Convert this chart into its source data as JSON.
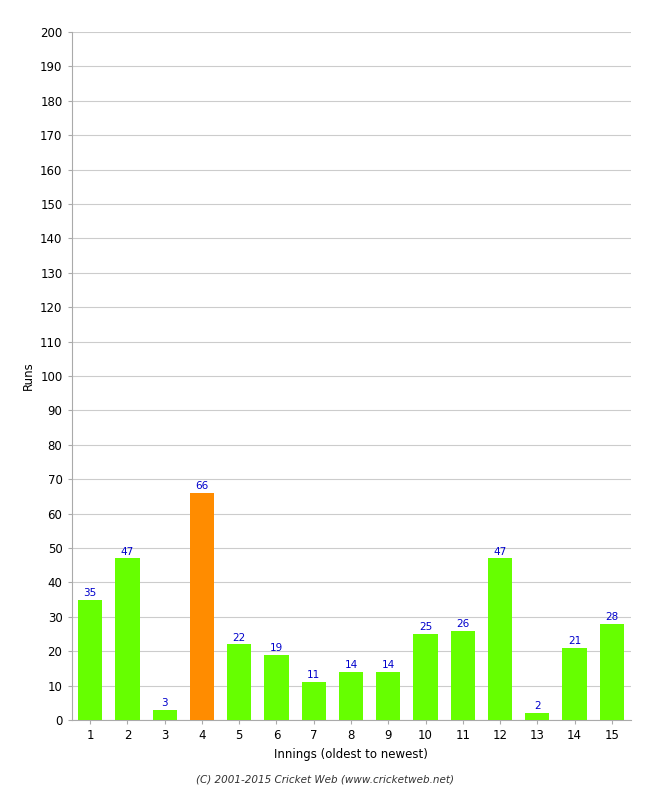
{
  "xlabel": "Innings (oldest to newest)",
  "ylabel": "Runs",
  "categories": [
    "1",
    "2",
    "3",
    "4",
    "5",
    "6",
    "7",
    "8",
    "9",
    "10",
    "11",
    "12",
    "13",
    "14",
    "15"
  ],
  "values": [
    35,
    47,
    3,
    66,
    22,
    19,
    11,
    14,
    14,
    25,
    26,
    47,
    2,
    21,
    28
  ],
  "bar_colors": [
    "#66ff00",
    "#66ff00",
    "#66ff00",
    "#ff8c00",
    "#66ff00",
    "#66ff00",
    "#66ff00",
    "#66ff00",
    "#66ff00",
    "#66ff00",
    "#66ff00",
    "#66ff00",
    "#66ff00",
    "#66ff00",
    "#66ff00"
  ],
  "ylim": [
    0,
    200
  ],
  "yticks": [
    0,
    10,
    20,
    30,
    40,
    50,
    60,
    70,
    80,
    90,
    100,
    110,
    120,
    130,
    140,
    150,
    160,
    170,
    180,
    190,
    200
  ],
  "label_color": "#0000cc",
  "background_color": "#ffffff",
  "grid_color": "#cccccc",
  "footer": "(C) 2001-2015 Cricket Web (www.cricketweb.net)",
  "bar_width": 0.65
}
